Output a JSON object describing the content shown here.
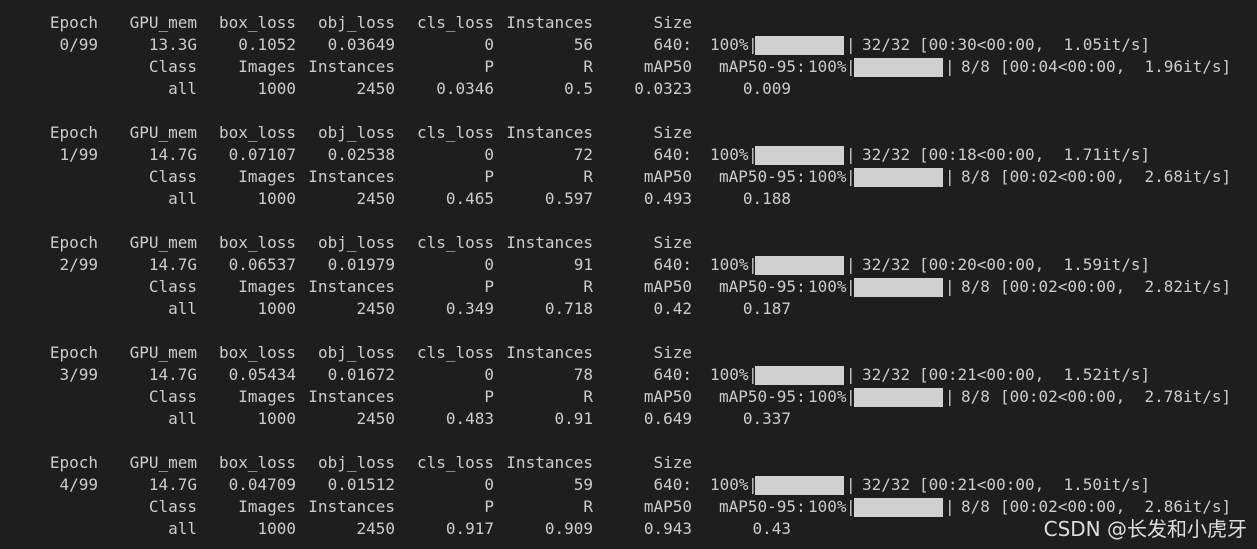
{
  "watermark": "CSDN @长发和小虎牙",
  "headers": {
    "train": [
      "Epoch",
      "GPU_mem",
      "box_loss",
      "obj_loss",
      "cls_loss",
      "Instances",
      "Size"
    ],
    "val": [
      "Class",
      "Images",
      "Instances",
      "P",
      "R",
      "mAP50",
      "mAP50-95:"
    ]
  },
  "epochs": [
    {
      "train": {
        "epoch": "0/99",
        "gpu_mem": "13.3G",
        "box_loss": "0.1052",
        "obj_loss": "0.03649",
        "cls_loss": "0",
        "instances": "56",
        "size": "640:"
      },
      "train_progress": {
        "percent": "100%",
        "count": "32/32",
        "timing": "[00:30<00:00,  1.05it/s]",
        "fill": 1.0
      },
      "val_progress": {
        "percent": "100%",
        "count": "8/8",
        "timing": "[00:04<00:00,  1.96it/s]",
        "fill": 1.0
      },
      "val": {
        "class": "all",
        "images": "1000",
        "instances": "2450",
        "p": "0.0346",
        "r": "0.5",
        "map50": "0.0323",
        "map50_95": "0.009"
      }
    },
    {
      "train": {
        "epoch": "1/99",
        "gpu_mem": "14.7G",
        "box_loss": "0.07107",
        "obj_loss": "0.02538",
        "cls_loss": "0",
        "instances": "72",
        "size": "640:"
      },
      "train_progress": {
        "percent": "100%",
        "count": "32/32",
        "timing": "[00:18<00:00,  1.71it/s]",
        "fill": 1.0
      },
      "val_progress": {
        "percent": "100%",
        "count": "8/8",
        "timing": "[00:02<00:00,  2.68it/s]",
        "fill": 1.0
      },
      "val": {
        "class": "all",
        "images": "1000",
        "instances": "2450",
        "p": "0.465",
        "r": "0.597",
        "map50": "0.493",
        "map50_95": "0.188"
      }
    },
    {
      "train": {
        "epoch": "2/99",
        "gpu_mem": "14.7G",
        "box_loss": "0.06537",
        "obj_loss": "0.01979",
        "cls_loss": "0",
        "instances": "91",
        "size": "640:"
      },
      "train_progress": {
        "percent": "100%",
        "count": "32/32",
        "timing": "[00:20<00:00,  1.59it/s]",
        "fill": 1.0
      },
      "val_progress": {
        "percent": "100%",
        "count": "8/8",
        "timing": "[00:02<00:00,  2.82it/s]",
        "fill": 1.0
      },
      "val": {
        "class": "all",
        "images": "1000",
        "instances": "2450",
        "p": "0.349",
        "r": "0.718",
        "map50": "0.42",
        "map50_95": "0.187"
      }
    },
    {
      "train": {
        "epoch": "3/99",
        "gpu_mem": "14.7G",
        "box_loss": "0.05434",
        "obj_loss": "0.01672",
        "cls_loss": "0",
        "instances": "78",
        "size": "640:"
      },
      "train_progress": {
        "percent": "100%",
        "count": "32/32",
        "timing": "[00:21<00:00,  1.52it/s]",
        "fill": 1.0
      },
      "val_progress": {
        "percent": "100%",
        "count": "8/8",
        "timing": "[00:02<00:00,  2.78it/s]",
        "fill": 1.0
      },
      "val": {
        "class": "all",
        "images": "1000",
        "instances": "2450",
        "p": "0.483",
        "r": "0.91",
        "map50": "0.649",
        "map50_95": "0.337"
      }
    },
    {
      "train": {
        "epoch": "4/99",
        "gpu_mem": "14.7G",
        "box_loss": "0.04709",
        "obj_loss": "0.01512",
        "cls_loss": "0",
        "instances": "59",
        "size": "640:"
      },
      "train_progress": {
        "percent": "100%",
        "count": "32/32",
        "timing": "[00:21<00:00,  1.50it/s]",
        "fill": 1.0
      },
      "val_progress": {
        "percent": "100%",
        "count": "8/8",
        "timing": "[00:02<00:00,  2.86it/s]",
        "fill": 1.0
      },
      "val": {
        "class": "all",
        "images": "1000",
        "instances": "2450",
        "p": "0.917",
        "r": "0.909",
        "map50": "0.943",
        "map50_95": "0.43"
      }
    }
  ]
}
